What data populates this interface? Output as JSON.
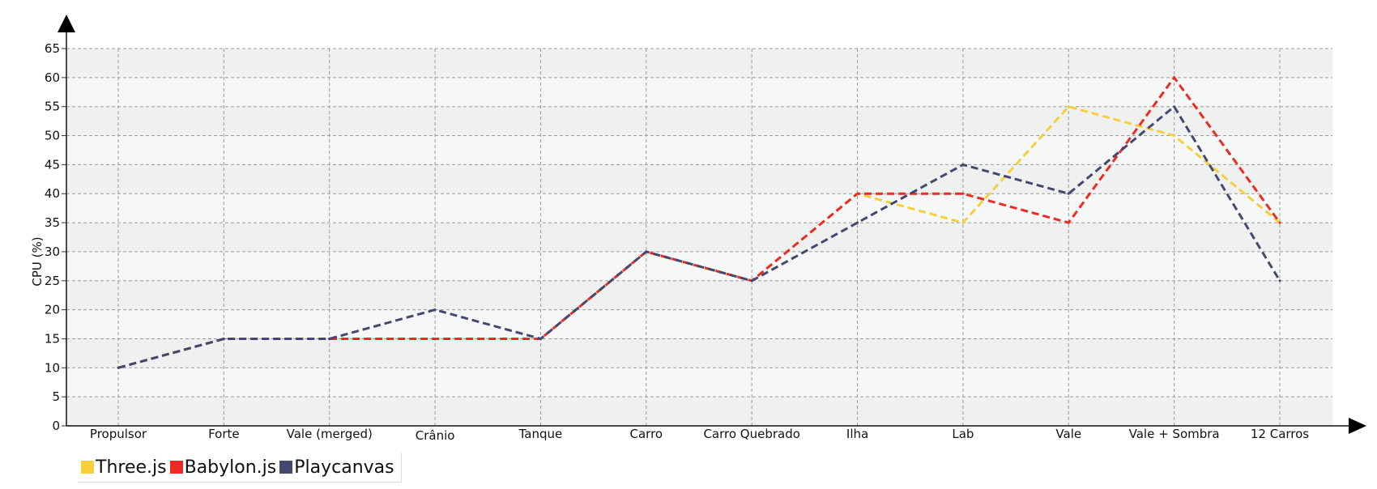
{
  "chart_data": {
    "type": "line",
    "categories": [
      "Propulsor",
      "Forte",
      "Vale (merged)",
      "Crânio",
      "Tanque",
      "Carro",
      "Carro Quebrado",
      "Ilha",
      "Lab",
      "Vale",
      "Vale + Sombra",
      "12 Carros"
    ],
    "series": [
      {
        "name": "Three.js",
        "color": "#f7cf3c",
        "values": [
          10,
          15,
          15,
          15,
          15,
          30,
          25,
          40,
          35,
          55,
          50,
          35
        ]
      },
      {
        "name": "Babylon.js",
        "color": "#ee2a24",
        "values": [
          10,
          15,
          15,
          15,
          15,
          30,
          25,
          40,
          40,
          35,
          60,
          35
        ]
      },
      {
        "name": "Playcanvas",
        "color": "#46476f",
        "values": [
          10,
          15,
          15,
          20,
          15,
          30,
          25,
          35,
          45,
          40,
          55,
          25
        ]
      }
    ],
    "ylabel": "CPU (%)",
    "xlabel": "",
    "ylim": [
      0,
      65
    ],
    "yticks": [
      0,
      5,
      10,
      15,
      20,
      25,
      30,
      35,
      40,
      45,
      50,
      55,
      60,
      65
    ],
    "grid": true,
    "line_style": "dashed",
    "legend_position": "bottom-left"
  }
}
